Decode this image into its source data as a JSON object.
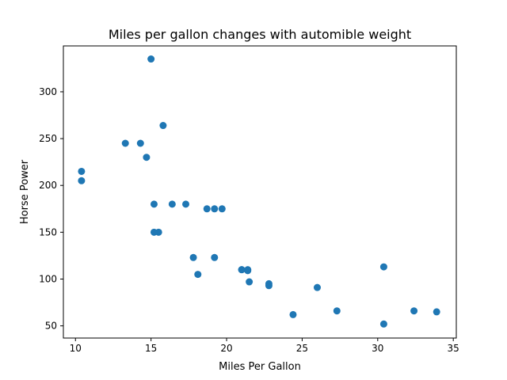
{
  "chart_data": {
    "type": "scatter",
    "title": "Miles per gallon changes with automible weight",
    "xlabel": "Miles Per Gallon",
    "ylabel": "Horse Power",
    "xlim": [
      9.2,
      35.2
    ],
    "ylim": [
      37,
      349
    ],
    "xticks": [
      10,
      15,
      20,
      25,
      30,
      35
    ],
    "yticks": [
      50,
      100,
      150,
      200,
      250,
      300
    ],
    "grid": false,
    "marker_color": "#1f77b4",
    "points": [
      {
        "x": 21.0,
        "y": 110
      },
      {
        "x": 21.0,
        "y": 110
      },
      {
        "x": 22.8,
        "y": 93
      },
      {
        "x": 21.4,
        "y": 110
      },
      {
        "x": 18.7,
        "y": 175
      },
      {
        "x": 18.1,
        "y": 105
      },
      {
        "x": 14.3,
        "y": 245
      },
      {
        "x": 24.4,
        "y": 62
      },
      {
        "x": 22.8,
        "y": 95
      },
      {
        "x": 19.2,
        "y": 123
      },
      {
        "x": 17.8,
        "y": 123
      },
      {
        "x": 16.4,
        "y": 180
      },
      {
        "x": 17.3,
        "y": 180
      },
      {
        "x": 15.2,
        "y": 180
      },
      {
        "x": 10.4,
        "y": 205
      },
      {
        "x": 10.4,
        "y": 215
      },
      {
        "x": 14.7,
        "y": 230
      },
      {
        "x": 32.4,
        "y": 66
      },
      {
        "x": 30.4,
        "y": 52
      },
      {
        "x": 33.9,
        "y": 65
      },
      {
        "x": 21.5,
        "y": 97
      },
      {
        "x": 15.5,
        "y": 150
      },
      {
        "x": 15.2,
        "y": 150
      },
      {
        "x": 13.3,
        "y": 245
      },
      {
        "x": 19.2,
        "y": 175
      },
      {
        "x": 27.3,
        "y": 66
      },
      {
        "x": 26.0,
        "y": 91
      },
      {
        "x": 30.4,
        "y": 113
      },
      {
        "x": 15.8,
        "y": 264
      },
      {
        "x": 19.7,
        "y": 175
      },
      {
        "x": 15.0,
        "y": 335
      },
      {
        "x": 21.4,
        "y": 109
      }
    ]
  }
}
